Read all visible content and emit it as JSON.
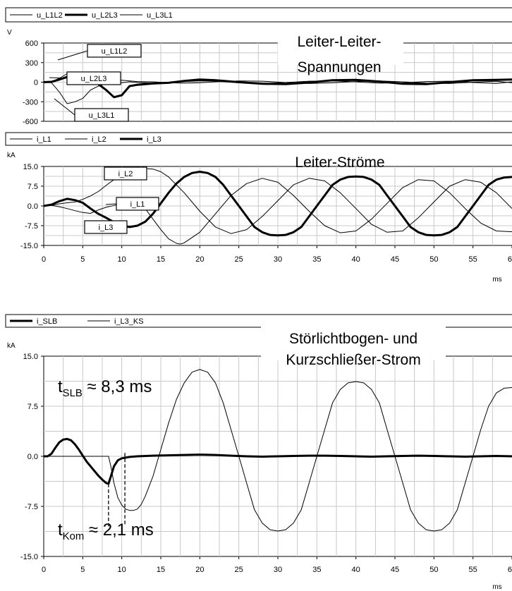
{
  "chart_data": [
    {
      "type": "line",
      "title": "Leiter-Leiter-Spannungen",
      "title_lines": [
        "Leiter-Leiter-",
        "Spannungen"
      ],
      "unit": "V",
      "xlim": [
        0,
        60
      ],
      "ylim": [
        -600,
        600
      ],
      "yticks": [
        "600",
        "300",
        "0",
        "-300",
        "-600"
      ],
      "ytick_values": [
        600,
        300,
        0,
        -300,
        -600
      ],
      "grid": true,
      "legend_position": "top-left",
      "series": [
        {
          "name": "u_L1L2",
          "style": "thin",
          "x": [
            0,
            1,
            2,
            3,
            4,
            5,
            6,
            7,
            8,
            9,
            10,
            11,
            12,
            14,
            16,
            18,
            20,
            22,
            25,
            28,
            31,
            34,
            37,
            40,
            43,
            46,
            49,
            52,
            55,
            58,
            60
          ],
          "y": [
            0,
            5,
            60,
            130,
            90,
            40,
            20,
            10,
            -10,
            -25,
            -10,
            5,
            -5,
            -15,
            -10,
            10,
            20,
            15,
            -10,
            -20,
            -5,
            15,
            20,
            5,
            -15,
            -10,
            10,
            15,
            -5,
            -20,
            5
          ]
        },
        {
          "name": "u_L2L3",
          "style": "thick",
          "x": [
            0,
            1,
            2,
            3,
            4,
            5,
            6,
            7,
            8,
            9,
            10,
            11,
            12,
            14,
            16,
            18,
            20,
            22,
            25,
            28,
            31,
            34,
            37,
            40,
            43,
            46,
            49,
            52,
            55,
            58,
            60
          ],
          "y": [
            0,
            5,
            40,
            80,
            110,
            90,
            40,
            -30,
            -120,
            -230,
            -200,
            -60,
            -40,
            -20,
            -10,
            20,
            40,
            30,
            0,
            -25,
            -30,
            -5,
            30,
            35,
            10,
            -25,
            -30,
            0,
            30,
            35,
            40
          ]
        },
        {
          "name": "u_L3L1",
          "style": "thin",
          "x": [
            0,
            1,
            2,
            3,
            4,
            5,
            6,
            7,
            8,
            9,
            10,
            11,
            12,
            14,
            16,
            18,
            20,
            22,
            25,
            28,
            31,
            34,
            37,
            40,
            43,
            46,
            49,
            52,
            55,
            58,
            60
          ],
          "y": [
            0,
            -10,
            -150,
            -330,
            -300,
            -250,
            -120,
            -60,
            -20,
            10,
            30,
            20,
            10,
            5,
            -10,
            -15,
            -10,
            5,
            20,
            15,
            -5,
            -20,
            -10,
            10,
            20,
            5,
            -15,
            -20,
            0,
            15,
            -10
          ]
        }
      ],
      "annotations": [
        "u_L1L2",
        "u_L2L3",
        "u_L3L1"
      ]
    },
    {
      "type": "line",
      "title": "Leiter-Ströme",
      "title_lines": [
        "Leiter-Ströme"
      ],
      "unit": "kA",
      "xlabel": "ms",
      "xlim": [
        0,
        60
      ],
      "ylim": [
        -15,
        15
      ],
      "xticks": [
        "0",
        "5",
        "10",
        "15",
        "20",
        "25",
        "30",
        "35",
        "40",
        "45",
        "50",
        "55",
        "60"
      ],
      "xtick_values": [
        0,
        5,
        10,
        15,
        20,
        25,
        30,
        35,
        40,
        45,
        50,
        55,
        60
      ],
      "yticks": [
        "15.0",
        "7.5",
        "0.0",
        "-7.5",
        "-15.0"
      ],
      "ytick_values": [
        15,
        7.5,
        0,
        -7.5,
        -15
      ],
      "grid": true,
      "legend_position": "top-left",
      "series": [
        {
          "name": "i_L1",
          "style": "thin",
          "x": [
            0,
            1,
            2,
            3,
            4,
            5,
            6,
            7,
            8,
            9,
            10,
            11,
            11.5,
            12,
            13,
            14,
            15,
            16,
            17,
            17.5,
            18,
            20,
            22,
            24,
            26,
            28,
            30,
            32,
            34,
            36,
            38,
            40,
            42,
            44,
            46,
            48,
            50,
            52,
            54,
            56,
            58,
            60
          ],
          "y": [
            0,
            0.2,
            -0.3,
            -1,
            -1.8,
            -2.5,
            -2.8,
            -1.5,
            -0.5,
            0.2,
            1,
            2.5,
            3,
            2.2,
            -1,
            -5,
            -9,
            -12.5,
            -14.2,
            -14.5,
            -14,
            -10,
            -3,
            4,
            8.5,
            10.5,
            9,
            4,
            -2,
            -7.5,
            -10.2,
            -9.5,
            -5,
            1,
            7,
            10,
            9.5,
            5,
            -1,
            -6.5,
            -9.5,
            -9.8
          ]
        },
        {
          "name": "i_L2",
          "style": "thin",
          "x": [
            0,
            1,
            2,
            3,
            4,
            5,
            6,
            7,
            8,
            9,
            10,
            11,
            12,
            13,
            14,
            15,
            16,
            17,
            18,
            20,
            22,
            24,
            26,
            28,
            30,
            32,
            34,
            36,
            38,
            40,
            42,
            44,
            46,
            48,
            50,
            52,
            54,
            56,
            58,
            60
          ],
          "y": [
            0,
            0.2,
            0.8,
            1.2,
            1.5,
            2.5,
            3.8,
            5.5,
            7.8,
            10,
            12,
            13.4,
            14,
            14.2,
            14,
            13,
            11,
            8,
            5,
            -2,
            -8,
            -10.5,
            -9,
            -4,
            2,
            8,
            10.5,
            9.5,
            5,
            -1,
            -7,
            -10,
            -9.5,
            -4.5,
            1.5,
            7.5,
            10,
            9,
            5,
            -1
          ]
        },
        {
          "name": "i_L3",
          "style": "thick",
          "x": [
            0,
            1,
            2,
            3,
            4,
            5,
            6,
            7,
            8,
            9,
            10,
            11,
            12,
            13,
            14,
            15,
            16,
            17,
            18,
            19,
            20,
            21,
            22,
            23,
            24,
            25,
            26,
            27,
            28,
            29,
            30,
            31,
            32,
            33,
            34,
            35,
            36,
            37,
            38,
            39,
            40,
            41,
            42,
            43,
            44,
            45,
            46,
            47,
            48,
            49,
            50,
            51,
            52,
            53,
            54,
            55,
            56,
            57,
            58,
            59,
            60
          ],
          "y": [
            0,
            0.5,
            1.8,
            2.7,
            2.2,
            1.2,
            -1,
            -3,
            -4.5,
            -6.2,
            -7.5,
            -8,
            -7.5,
            -6,
            -3,
            1,
            5,
            8.5,
            11,
            12.5,
            13,
            12.5,
            11,
            8,
            4,
            0,
            -4,
            -8,
            -10,
            -11,
            -11.2,
            -11,
            -10,
            -8,
            -4,
            0,
            4,
            8,
            10,
            11,
            11.2,
            11,
            10,
            8,
            4,
            0,
            -4,
            -8,
            -10,
            -11,
            -11.2,
            -11,
            -10,
            -8,
            -4,
            0,
            4,
            8,
            10,
            10.8,
            11
          ]
        }
      ],
      "annotations": [
        "i_L2",
        "i_L1",
        "i_L3"
      ]
    },
    {
      "type": "line",
      "title": "Störlichtbogen- und Kurzschließer-Strom",
      "title_lines": [
        "Störlichtbogen- und",
        "Kurzschließer-Strom"
      ],
      "unit": "kA",
      "xlabel": "ms",
      "xlim": [
        0,
        60
      ],
      "ylim": [
        -15,
        15
      ],
      "xticks": [
        "0",
        "5",
        "10",
        "15",
        "20",
        "25",
        "30",
        "35",
        "40",
        "45",
        "50",
        "55",
        "60"
      ],
      "xtick_values": [
        0,
        5,
        10,
        15,
        20,
        25,
        30,
        35,
        40,
        45,
        50,
        55,
        60
      ],
      "yticks": [
        "15.0",
        "7.5",
        "0.0",
        "-7.5",
        "-15.0"
      ],
      "ytick_values": [
        15,
        7.5,
        0,
        -7.5,
        -15
      ],
      "grid": true,
      "legend_position": "top-left",
      "series": [
        {
          "name": "i_SLB",
          "style": "thick",
          "x": [
            0,
            0.5,
            1,
            1.5,
            2,
            2.5,
            3,
            3.5,
            4,
            4.5,
            5,
            5.5,
            6,
            6.5,
            7,
            7.5,
            8,
            8.3,
            8.6,
            9,
            9.5,
            10,
            10.5,
            11,
            12,
            14,
            16,
            18,
            20,
            22,
            24,
            26,
            28,
            30,
            32,
            34,
            36,
            38,
            40,
            42,
            44,
            46,
            48,
            50,
            52,
            54,
            56,
            58,
            60
          ],
          "y": [
            0,
            0,
            0.4,
            1.3,
            2.1,
            2.5,
            2.6,
            2.4,
            1.8,
            1,
            0.1,
            -0.8,
            -1.5,
            -2.2,
            -2.9,
            -3.5,
            -4,
            -4.1,
            -3,
            -1.5,
            -0.6,
            -0.3,
            -0.2,
            -0.1,
            0,
            0.1,
            0.15,
            0.2,
            0.25,
            0.2,
            0.1,
            0,
            -0.05,
            0,
            0.05,
            0.1,
            0.1,
            0.05,
            0,
            -0.05,
            0,
            0.05,
            0.1,
            0.05,
            0,
            -0.05,
            0,
            0.05,
            0
          ]
        },
        {
          "name": "i_L3_KS",
          "style": "thin",
          "x": [
            0,
            2,
            4,
            6,
            8,
            8.3,
            8.6,
            9,
            9.5,
            10,
            10.5,
            11,
            11.5,
            12,
            12.5,
            13,
            14,
            15,
            16,
            17,
            18,
            19,
            20,
            21,
            22,
            23,
            24,
            25,
            26,
            27,
            28,
            29,
            30,
            31,
            32,
            33,
            34,
            35,
            36,
            37,
            38,
            39,
            40,
            41,
            42,
            43,
            44,
            45,
            46,
            47,
            48,
            49,
            50,
            51,
            52,
            53,
            54,
            55,
            56,
            57,
            58,
            59,
            60
          ],
          "y": [
            0,
            0,
            0,
            0,
            0,
            0,
            -1.5,
            -4,
            -6.2,
            -7.3,
            -7.9,
            -8.1,
            -8.1,
            -7.9,
            -7.2,
            -6,
            -3,
            1,
            5,
            8.5,
            11,
            12.6,
            13,
            12.6,
            11,
            8,
            4,
            0,
            -4,
            -8,
            -10,
            -11,
            -11.2,
            -11,
            -10,
            -8,
            -4,
            0,
            4,
            8,
            10,
            11,
            11.2,
            11,
            10,
            8,
            4,
            0,
            -4,
            -8,
            -10,
            -11,
            -11.2,
            -11,
            -10,
            -8,
            -4,
            0,
            4,
            7.5,
            9.5,
            10.2,
            10.3
          ]
        }
      ],
      "markers": [
        {
          "x": 8.3,
          "y_from": -4.1,
          "y_to": -15
        },
        {
          "x": 10.4,
          "y_from": 0.5,
          "y_to": -15
        }
      ],
      "annotations": [
        {
          "base": "t",
          "sub": "SLB",
          "rest": " ≈ 8,3 ms"
        },
        {
          "base": "t",
          "sub": "Kom",
          "rest": " ≈ 2,1 ms"
        }
      ]
    }
  ]
}
